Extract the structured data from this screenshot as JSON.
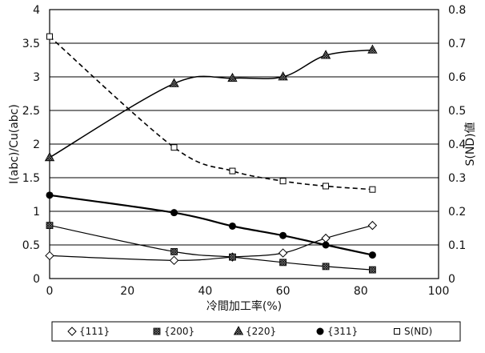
{
  "chart_data": {
    "type": "line",
    "title": "",
    "xlabel": "冷間加工率(%)",
    "ylabel": "I(abc)/Cu(abc)",
    "y2label": "S(ND)値",
    "xlim": [
      0,
      100
    ],
    "ylim": [
      0,
      4
    ],
    "y2lim": [
      0,
      0.8
    ],
    "xticks": [
      "0",
      "20",
      "40",
      "60",
      "80",
      "100"
    ],
    "yticks": [
      "0",
      "0.5",
      "1",
      "1.5",
      "2",
      "2.5",
      "3",
      "3.5",
      "4"
    ],
    "y2ticks": [
      "0",
      "0.1",
      "0.2",
      "0.3",
      "0.4",
      "0.5",
      "0.6",
      "0.7",
      "0.8"
    ],
    "grid": "horizontal",
    "legend_position": "bottom",
    "series": [
      {
        "name": "{111}",
        "marker": "diamond-open",
        "axis": "left",
        "line": "solid",
        "x": [
          0,
          32,
          47,
          60,
          71,
          83
        ],
        "values": [
          0.34,
          0.27,
          0.32,
          0.38,
          0.6,
          0.79
        ]
      },
      {
        "name": "{200}",
        "marker": "square-hatched",
        "axis": "left",
        "line": "solid",
        "x": [
          0,
          32,
          47,
          60,
          71,
          83
        ],
        "values": [
          0.79,
          0.4,
          0.32,
          0.24,
          0.18,
          0.13
        ]
      },
      {
        "name": "{220}",
        "marker": "triangle-hatched",
        "axis": "left",
        "line": "solid",
        "x": [
          0,
          32,
          47,
          60,
          71,
          83
        ],
        "values": [
          1.8,
          2.9,
          2.98,
          3.0,
          3.32,
          3.4
        ]
      },
      {
        "name": "{311}",
        "marker": "circle-filled",
        "axis": "left",
        "line": "solid-thick",
        "x": [
          0,
          32,
          47,
          60,
          71,
          83
        ],
        "values": [
          1.24,
          0.98,
          0.78,
          0.64,
          0.5,
          0.35
        ]
      },
      {
        "name": "S(ND)",
        "marker": "square-open",
        "axis": "right",
        "line": "dashed",
        "x": [
          0,
          32,
          47,
          60,
          71,
          83
        ],
        "values": [
          0.72,
          0.39,
          0.32,
          0.29,
          0.275,
          0.265
        ]
      }
    ]
  }
}
